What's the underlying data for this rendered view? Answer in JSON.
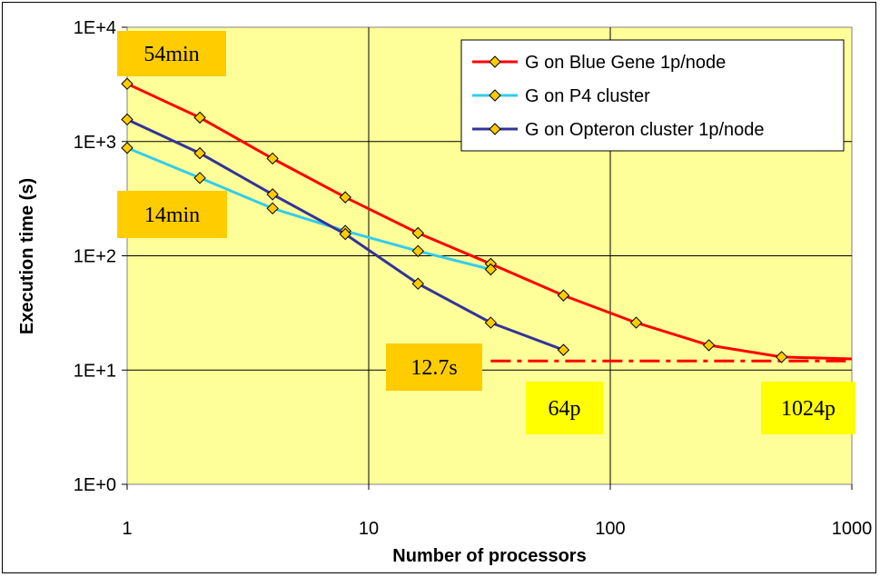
{
  "chart_data": {
    "type": "line",
    "xscale": "log",
    "yscale": "log",
    "xlim": [
      1,
      1000
    ],
    "ylim": [
      1,
      10000
    ],
    "xlabel": "Number of processors",
    "ylabel": "Execution time (s)",
    "x_ticks": [
      {
        "value": 1,
        "label": "1"
      },
      {
        "value": 10,
        "label": "10"
      },
      {
        "value": 100,
        "label": "100"
      },
      {
        "value": 1000,
        "label": "1000"
      }
    ],
    "y_ticks": [
      {
        "value": 1,
        "label": "1E+0"
      },
      {
        "value": 10,
        "label": "1E+1"
      },
      {
        "value": 100,
        "label": "1E+2"
      },
      {
        "value": 1000,
        "label": "1E+3"
      },
      {
        "value": 10000,
        "label": "1E+4"
      }
    ],
    "grid": true,
    "legend_position": "top-right",
    "series": [
      {
        "name": "G on Blue Gene 1p/node",
        "color": "#ff0000",
        "x": [
          1,
          2,
          4,
          8,
          16,
          32,
          64,
          128,
          256,
          512
        ],
        "y": [
          3200,
          1620,
          710,
          325,
          158,
          85,
          45,
          26,
          16.5,
          13
        ]
      },
      {
        "name": "G on P4 cluster",
        "color": "#33ccee",
        "x": [
          1,
          2,
          4,
          8,
          16,
          32
        ],
        "y": [
          880,
          480,
          260,
          165,
          110,
          76
        ]
      },
      {
        "name": "G on Opteron cluster 1p/node",
        "color": "#333399",
        "x": [
          1,
          2,
          4,
          8,
          16,
          32,
          64
        ],
        "y": [
          1560,
          790,
          345,
          155,
          57,
          26,
          15
        ]
      }
    ],
    "blue_gene_tail": {
      "x": [
        512,
        1024
      ],
      "y": [
        13,
        12.5
      ]
    },
    "reference_line": {
      "y": 12,
      "x": [
        32,
        1000
      ],
      "color": "#ff0000",
      "style": "dash-dot"
    },
    "annotations": [
      {
        "text": "54min",
        "bg": "#ffcc00"
      },
      {
        "text": "14min",
        "bg": "#ffcc00"
      },
      {
        "text": "12.7s",
        "bg": "#ffcc00"
      },
      {
        "text": "64p",
        "bg": "#ffff00"
      },
      {
        "text": "1024p",
        "bg": "#ffff00"
      }
    ],
    "plot_bg": "#ffff99",
    "marker_color": "#ffcc00"
  }
}
